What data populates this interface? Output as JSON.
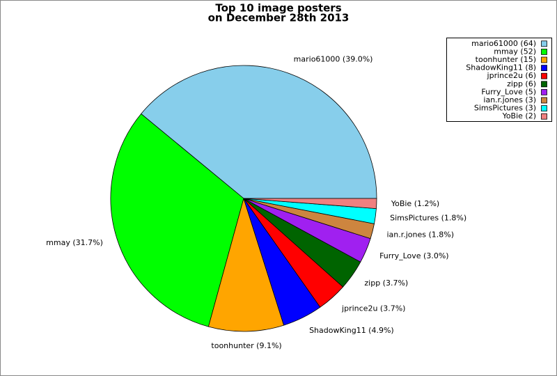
{
  "chart_data": {
    "type": "pie",
    "title": [
      "Top 10 image posters",
      "on December 28th 2013"
    ],
    "categories": [
      "mario61000",
      "mmay",
      "toonhunter",
      "ShadowKing11",
      "jprince2u",
      "zipp",
      "Furry_Love",
      "ian.r.jones",
      "SimsPictures",
      "YoBie"
    ],
    "values": [
      64,
      52,
      15,
      8,
      6,
      6,
      5,
      3,
      3,
      2
    ],
    "slice_labels": [
      "mario61000 (39.0%)",
      "mmay (31.7%)",
      "toonhunter (9.1%)",
      "ShadowKing11 (4.9%)",
      "jprince2u (3.7%)",
      "zipp (3.7%)",
      "Furry_Love (3.0%)",
      "ian.r.jones (1.8%)",
      "SimsPictures (1.8%)",
      "YoBie (1.2%)"
    ],
    "legend_labels": [
      "mario61000 (64)",
      "mmay (52)",
      "toonhunter (15)",
      "ShadowKing11 (8)",
      "jprince2u (6)",
      "zipp (6)",
      "Furry_Love (5)",
      "ian.r.jones (3)",
      "SimsPictures (3)",
      "YoBie (2)"
    ],
    "colors": [
      "#87ceeb",
      "#00ff00",
      "#ffa500",
      "#0000ff",
      "#ff0000",
      "#006400",
      "#a020f0",
      "#cd853f",
      "#00ffff",
      "#f08080"
    ],
    "legend": "upper right"
  }
}
